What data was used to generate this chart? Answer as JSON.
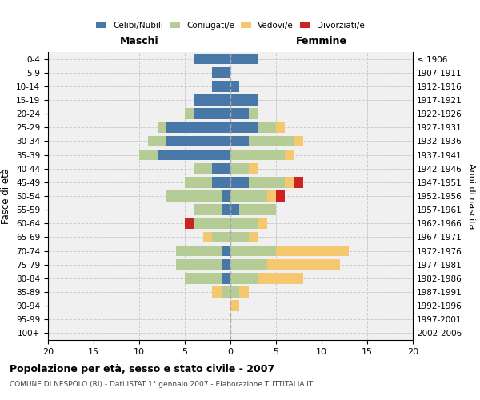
{
  "age_groups": [
    "0-4",
    "5-9",
    "10-14",
    "15-19",
    "20-24",
    "25-29",
    "30-34",
    "35-39",
    "40-44",
    "45-49",
    "50-54",
    "55-59",
    "60-64",
    "65-69",
    "70-74",
    "75-79",
    "80-84",
    "85-89",
    "90-94",
    "95-99",
    "100+"
  ],
  "birth_years": [
    "2002-2006",
    "1997-2001",
    "1992-1996",
    "1987-1991",
    "1982-1986",
    "1977-1981",
    "1972-1976",
    "1967-1971",
    "1962-1966",
    "1957-1961",
    "1952-1956",
    "1947-1951",
    "1942-1946",
    "1937-1941",
    "1932-1936",
    "1927-1931",
    "1922-1926",
    "1917-1921",
    "1912-1916",
    "1907-1911",
    "≤ 1906"
  ],
  "maschi": {
    "celibi": [
      4,
      2,
      2,
      4,
      4,
      7,
      7,
      8,
      2,
      2,
      1,
      1,
      0,
      0,
      1,
      1,
      1,
      0,
      0,
      0,
      0
    ],
    "coniugati": [
      0,
      0,
      0,
      0,
      1,
      1,
      2,
      2,
      2,
      3,
      6,
      3,
      4,
      2,
      5,
      5,
      4,
      1,
      0,
      0,
      0
    ],
    "vedovi": [
      0,
      0,
      0,
      0,
      0,
      0,
      0,
      0,
      0,
      0,
      0,
      0,
      0,
      1,
      0,
      0,
      0,
      1,
      0,
      0,
      0
    ],
    "divorziati": [
      0,
      0,
      0,
      0,
      0,
      0,
      0,
      0,
      0,
      0,
      0,
      0,
      1,
      0,
      0,
      0,
      0,
      0,
      0,
      0,
      0
    ]
  },
  "femmine": {
    "nubili": [
      3,
      0,
      1,
      3,
      2,
      3,
      2,
      0,
      0,
      2,
      0,
      1,
      0,
      0,
      0,
      0,
      0,
      0,
      0,
      0,
      0
    ],
    "coniugate": [
      0,
      0,
      0,
      0,
      1,
      2,
      5,
      6,
      2,
      4,
      4,
      4,
      3,
      2,
      5,
      4,
      3,
      1,
      0,
      0,
      0
    ],
    "vedove": [
      0,
      0,
      0,
      0,
      0,
      1,
      1,
      1,
      1,
      1,
      1,
      0,
      1,
      1,
      8,
      8,
      5,
      1,
      1,
      0,
      0
    ],
    "divorziate": [
      0,
      0,
      0,
      0,
      0,
      0,
      0,
      0,
      0,
      1,
      1,
      0,
      0,
      0,
      0,
      0,
      0,
      0,
      0,
      0,
      0
    ]
  },
  "colors": {
    "celibi_nubili": "#4878a8",
    "coniugati": "#b5cc96",
    "vedovi": "#f5c76e",
    "divorziati": "#cc2222"
  },
  "xlim": 20,
  "title": "Popolazione per età, sesso e stato civile - 2007",
  "subtitle": "COMUNE DI NESPOLO (RI) - Dati ISTAT 1° gennaio 2007 - Elaborazione TUTTITALIA.IT",
  "ylabel_left": "Fasce di età",
  "ylabel_right": "Anni di nascita",
  "xlabel_left": "Maschi",
  "xlabel_right": "Femmine",
  "background_color": "#f0f0f0",
  "grid_color": "#cccccc"
}
